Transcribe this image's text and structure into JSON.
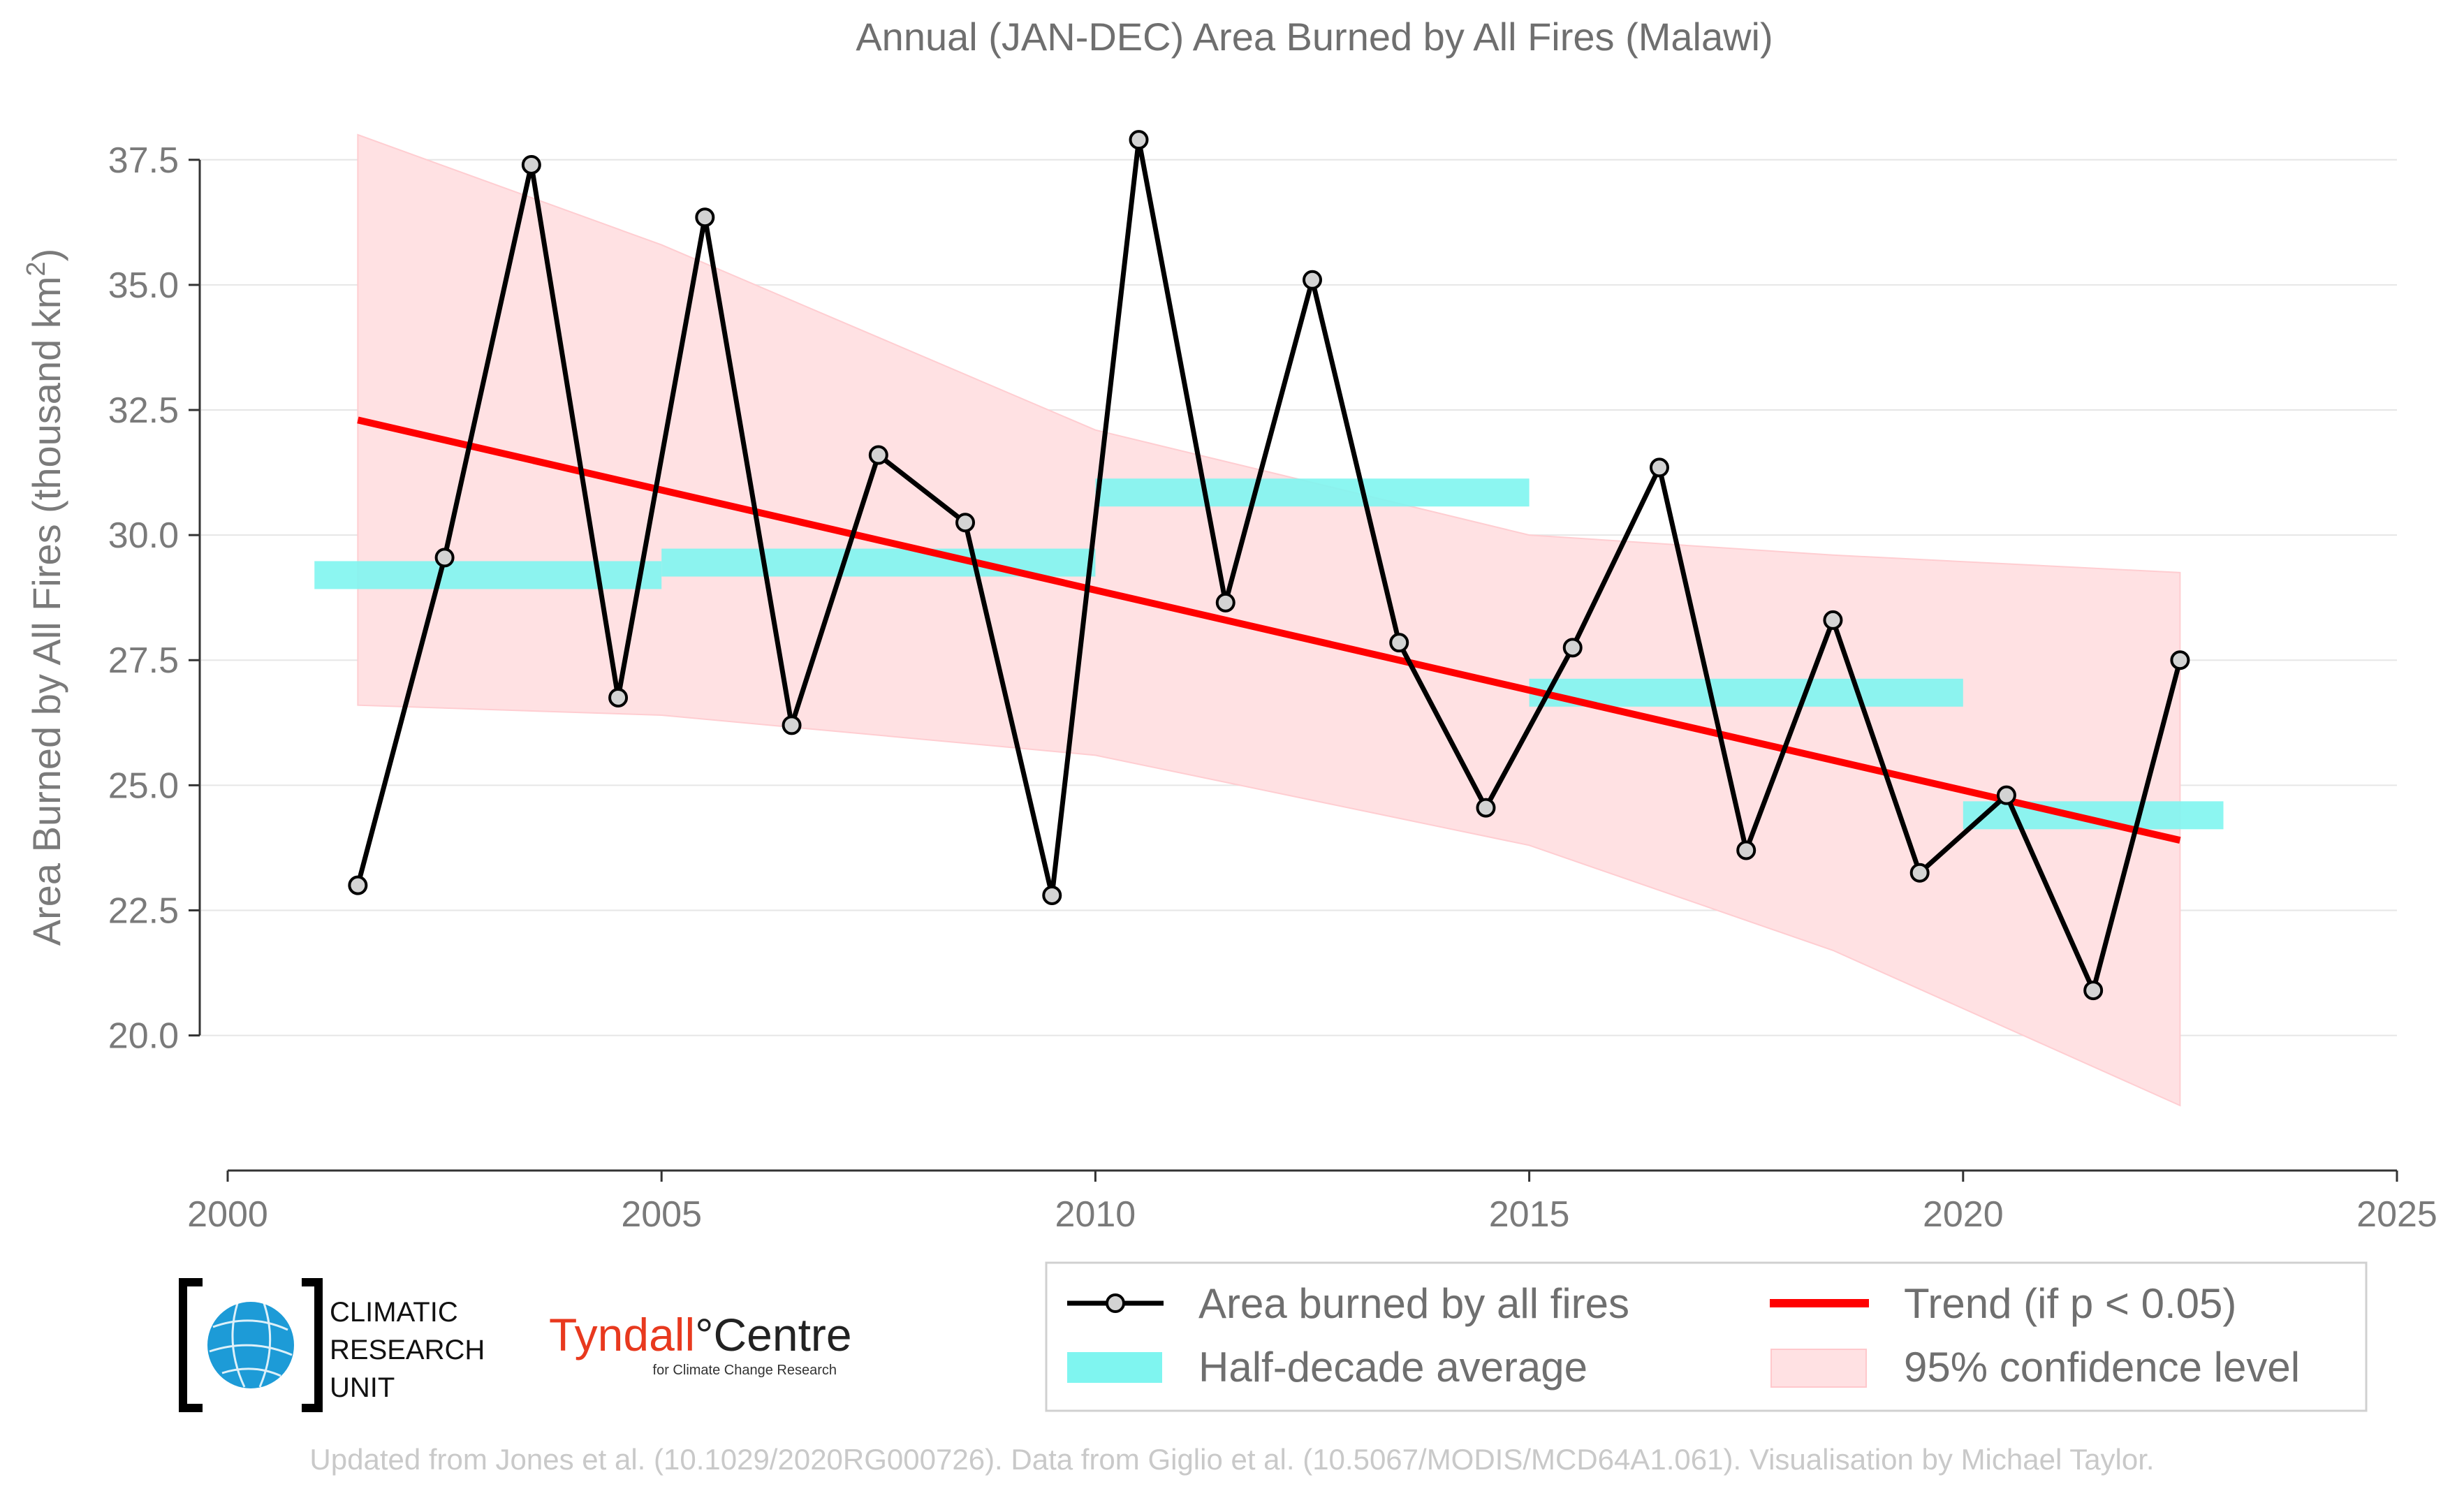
{
  "title": "Annual (JAN-DEC) Area Burned by All Fires (Malawi)",
  "ylabel_main": "Area Burned by All Fires (thousand km",
  "ylabel_sup": "2",
  "ylabel_end": ")",
  "chart_data": {
    "type": "line",
    "x": [
      2001.5,
      2002.5,
      2003.5,
      2004.5,
      2005.5,
      2006.5,
      2007.5,
      2008.5,
      2009.5,
      2010.5,
      2011.5,
      2012.5,
      2013.5,
      2014.5,
      2015.5,
      2016.5,
      2017.5,
      2018.5,
      2019.5,
      2020.5,
      2021.5,
      2022.5
    ],
    "series": [
      {
        "name": "Area burned by all fires",
        "values": [
          23.0,
          29.55,
          37.4,
          26.75,
          36.35,
          26.2,
          31.6,
          30.25,
          22.8,
          37.9,
          28.65,
          35.1,
          27.85,
          24.55,
          27.75,
          31.35,
          23.7,
          28.3,
          23.25,
          24.8,
          20.9,
          27.5
        ]
      }
    ],
    "half_decade": [
      {
        "start": 2001.0,
        "end": 2005.0,
        "value": 29.2
      },
      {
        "start": 2005.0,
        "end": 2010.0,
        "value": 29.45
      },
      {
        "start": 2010.0,
        "end": 2015.0,
        "value": 30.85
      },
      {
        "start": 2015.0,
        "end": 2020.0,
        "value": 26.85
      },
      {
        "start": 2020.0,
        "end": 2023.0,
        "value": 24.4
      }
    ],
    "trend": {
      "x": [
        2001.5,
        2022.5
      ],
      "y": [
        32.3,
        23.9
      ]
    },
    "confidence_band": {
      "x": [
        2001.5,
        2005.0,
        2010.0,
        2015.0,
        2018.5,
        2022.5
      ],
      "upper": [
        38.0,
        35.8,
        32.1,
        30.0,
        29.6,
        29.25
      ],
      "lower": [
        26.6,
        26.4,
        25.6,
        23.8,
        21.7,
        18.6
      ]
    },
    "xlim": [
      2000,
      2025
    ],
    "ylim": [
      17.3,
      38.6
    ],
    "xticks": [
      "2000",
      "2005",
      "2010",
      "2015",
      "2020",
      "2025"
    ],
    "yticks": [
      "20.0",
      "22.5",
      "25.0",
      "27.5",
      "30.0",
      "32.5",
      "35.0",
      "37.5"
    ],
    "grid": "horizontal",
    "legend_placement": "bottom-right",
    "colors": {
      "line": "#000000",
      "marker": "#d3d3d3",
      "half_decade": "#7ff5f0",
      "trend": "#ff0000",
      "band": "#ffe1e3"
    }
  },
  "legend": {
    "series_label": "Area burned by all fires",
    "half_decade_label": "Half-decade average",
    "trend_label": "Trend (if p < 0.05)",
    "confidence_label": "95% confidence level"
  },
  "logos": {
    "cru_line1": "CLIMATIC",
    "cru_line2": "RESEARCH",
    "cru_line3": "UNIT",
    "tyndall_a": "Tyndall",
    "tyndall_b": "°Centre",
    "tyndall_sub": "for Climate Change Research"
  },
  "footer": "Updated from Jones et al. (10.1029/2020RG000726). Data from Giglio et al. (10.5067/MODIS/MCD64A1.061). Visualisation by Michael Taylor."
}
